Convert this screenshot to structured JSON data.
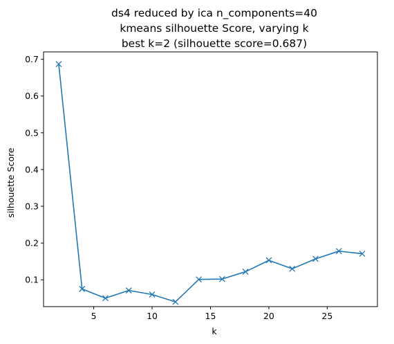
{
  "chart_data": {
    "type": "line",
    "title_lines": [
      "ds4 reduced by ica n_components=40",
      "kmeans silhouette Score, varying k",
      "best k=2 (silhouette score=0.687)"
    ],
    "xlabel": "k",
    "ylabel": "silhouette Score",
    "xlim": [
      0.7,
      29.3
    ],
    "ylim": [
      0.027,
      0.72
    ],
    "x_ticks": [
      5,
      10,
      15,
      20,
      25
    ],
    "x_tick_labels": [
      "5",
      "10",
      "15",
      "20",
      "25"
    ],
    "y_ticks": [
      0.1,
      0.2,
      0.3,
      0.4,
      0.5,
      0.6,
      0.7
    ],
    "y_tick_labels": [
      "0.1",
      "0.2",
      "0.3",
      "0.4",
      "0.5",
      "0.6",
      "0.7"
    ],
    "grid": false,
    "marker": "x",
    "series": [
      {
        "color": "#1f77b4",
        "x": [
          2,
          4,
          6,
          8,
          10,
          12,
          14,
          16,
          18,
          20,
          22,
          24,
          26,
          28
        ],
        "y": [
          0.687,
          0.075,
          0.05,
          0.071,
          0.06,
          0.04,
          0.101,
          0.102,
          0.122,
          0.153,
          0.13,
          0.157,
          0.178,
          0.171
        ]
      }
    ]
  }
}
